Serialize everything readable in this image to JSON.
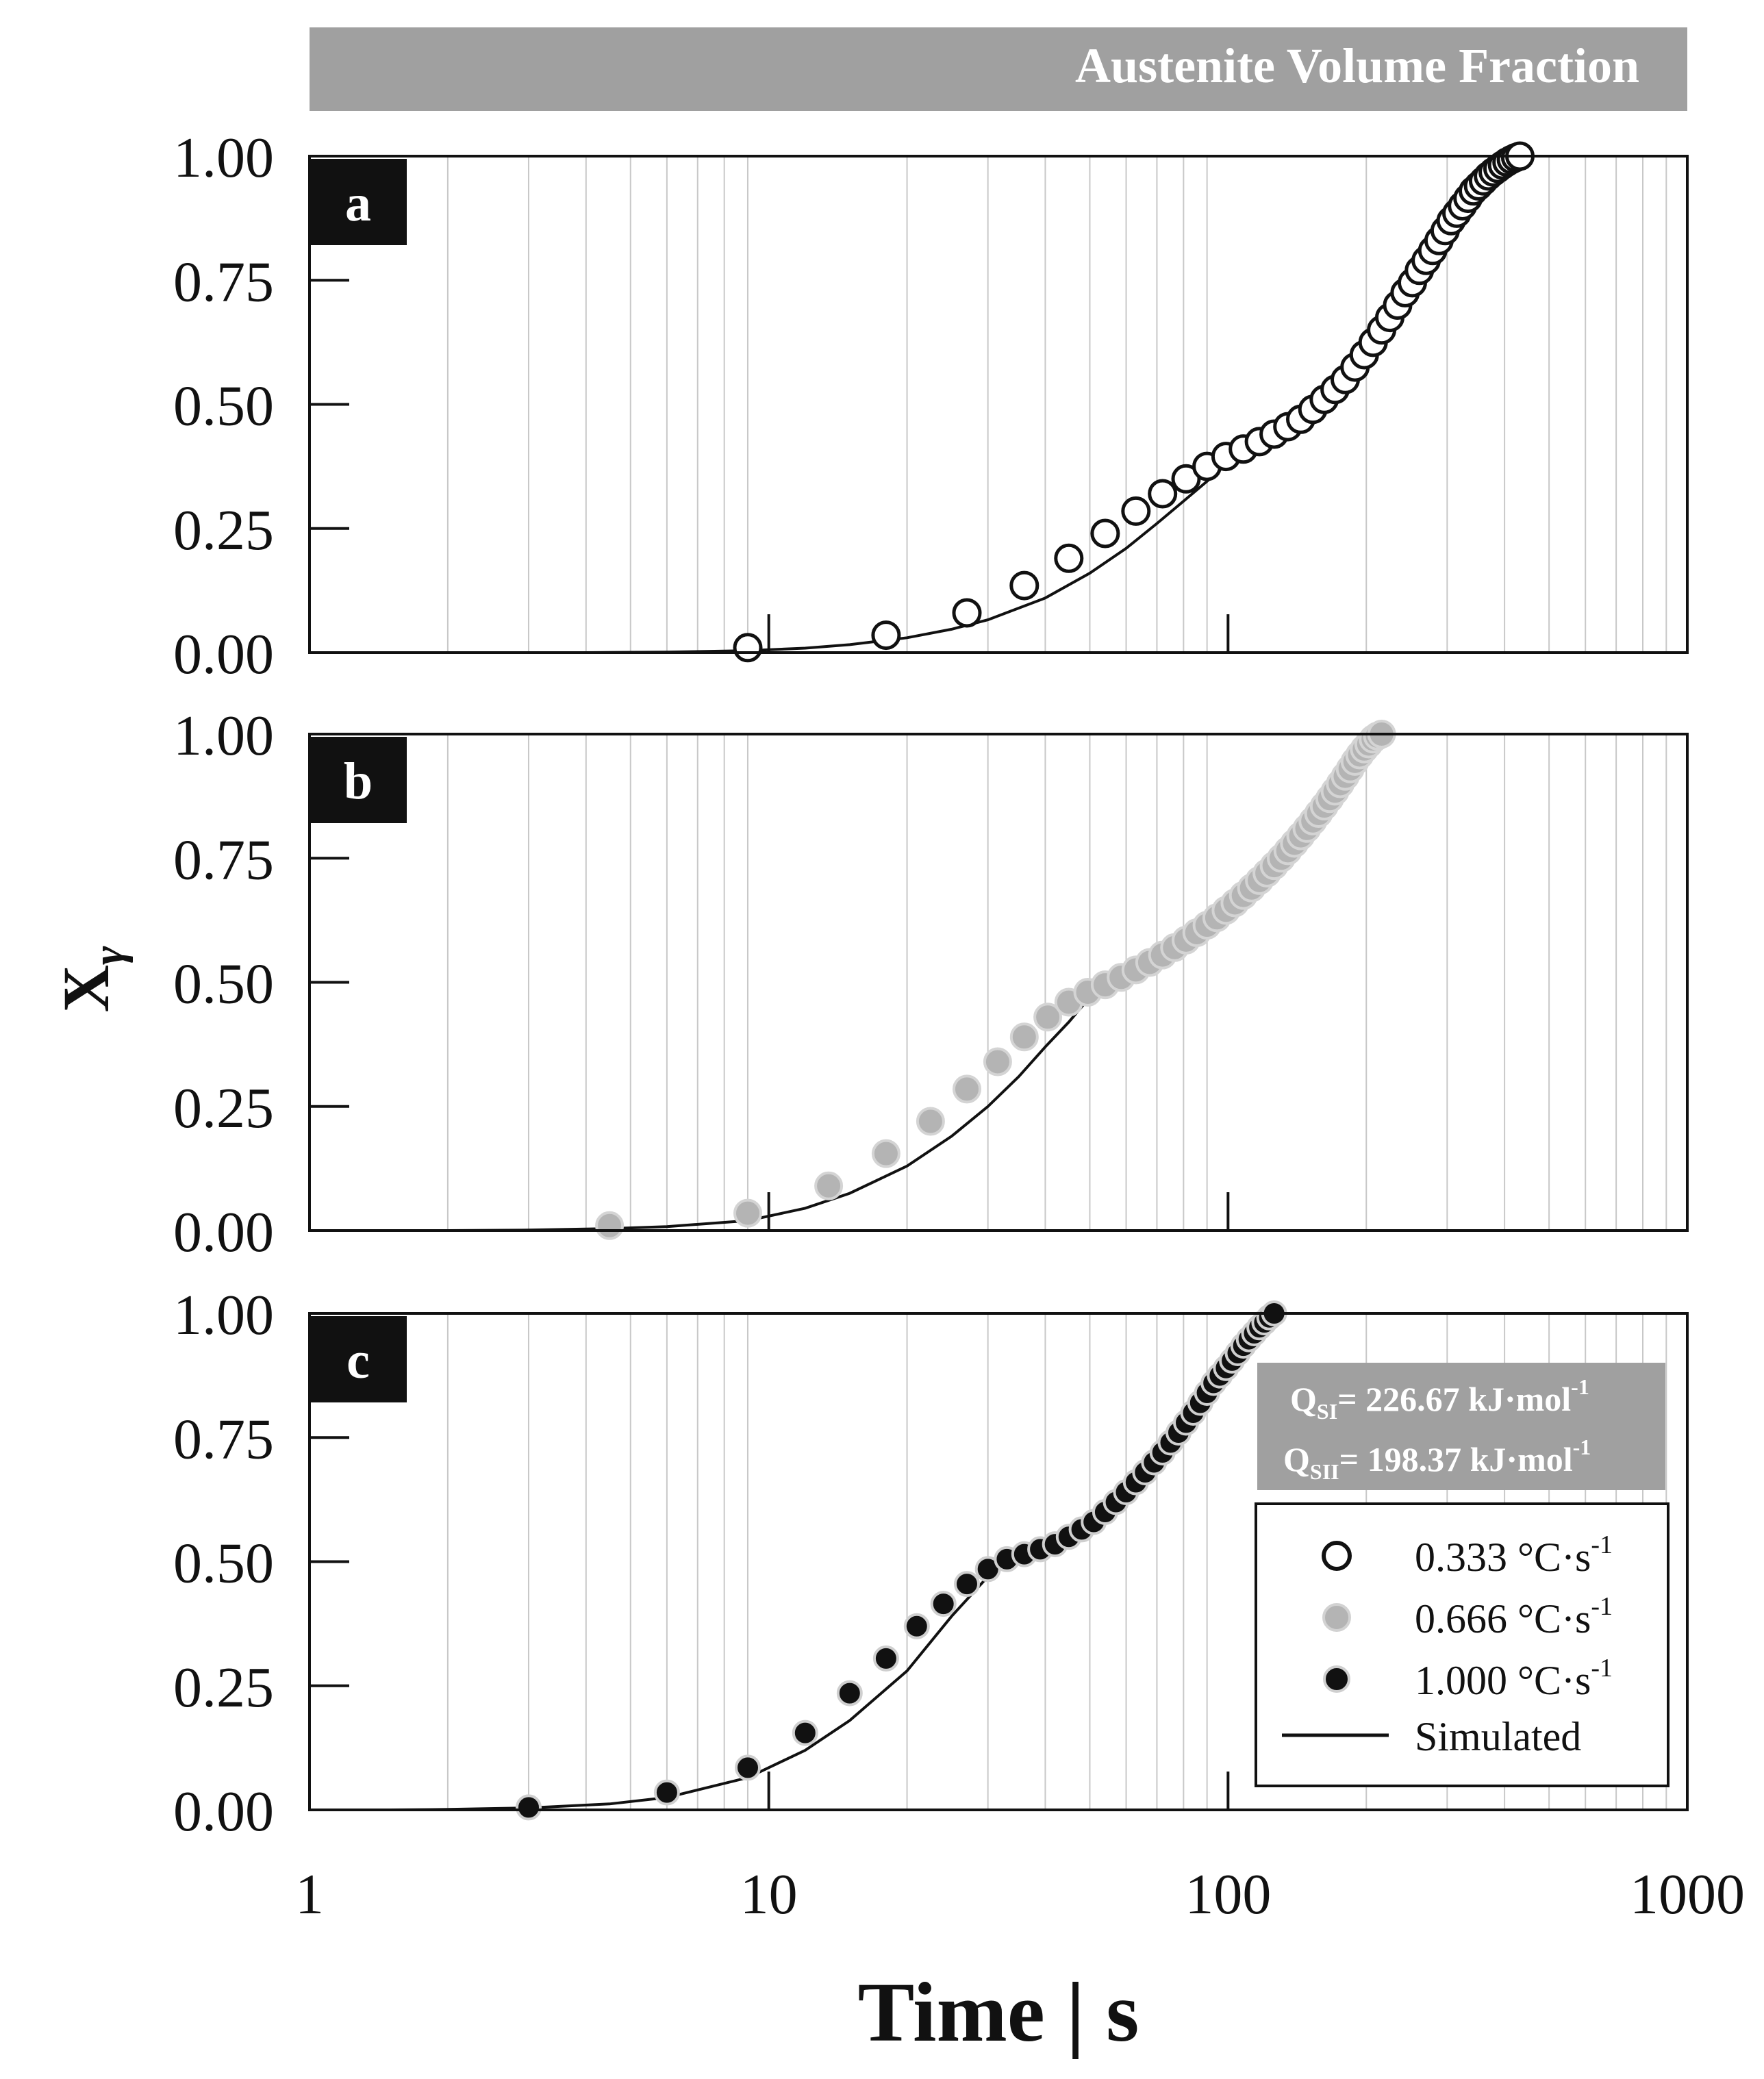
{
  "figure": {
    "banner": "Austenite Volume Fraction",
    "ylabel_main": "X",
    "ylabel_sub": "γ",
    "xlabel": "Time | s",
    "y_ticks": [
      "0.00",
      "0.25",
      "0.50",
      "0.75",
      "1.00"
    ],
    "x_ticks": [
      "1",
      "10",
      "100",
      "1000"
    ]
  },
  "info_box": {
    "line1_main": "Q",
    "line1_sub": "SI",
    "line1_rest": "= 226.67 kJ·mol",
    "line1_sup": "-1",
    "line2_main": "Q",
    "line2_sub": "SII",
    "line2_rest": "= 198.37 kJ·mol",
    "line2_sup": "-1"
  },
  "legend": {
    "items": [
      {
        "label": "0.333 °C·s",
        "sup": "-1",
        "marker": "open-circle"
      },
      {
        "label": "0.666 °C·s",
        "sup": "-1",
        "marker": "gray-circle"
      },
      {
        "label": "1.000 °C·s",
        "sup": "-1",
        "marker": "black-circle"
      },
      {
        "label": "Simulated",
        "sup": "",
        "marker": "line"
      }
    ]
  },
  "colors": {
    "banner_bg": "#a0a0a0",
    "label_bg": "#111111",
    "gray_marker": "#b4b4b4",
    "grid": "#c8c8c8"
  },
  "chart_data": [
    {
      "type": "scatter",
      "panel": "a",
      "title": "Austenite Volume Fraction",
      "xlabel": "Time | s",
      "ylabel": "Xγ",
      "xscale": "log",
      "xlim": [
        1,
        1000
      ],
      "ylim": [
        0,
        1
      ],
      "series": [
        {
          "name": "0.333 °C·s-1",
          "marker": "open-circle",
          "x": [
            9,
            18,
            27,
            36,
            45,
            54,
            63,
            72,
            81,
            90,
            99,
            108,
            117,
            126,
            135,
            144,
            153,
            162,
            171,
            180,
            189,
            198,
            207,
            216,
            225,
            234,
            243,
            252,
            261,
            270,
            279,
            288,
            297,
            306,
            315,
            324,
            333,
            342,
            351,
            360,
            369,
            378,
            387,
            396,
            405,
            414,
            423,
            432
          ],
          "y": [
            0.01,
            0.035,
            0.08,
            0.135,
            0.19,
            0.24,
            0.285,
            0.32,
            0.35,
            0.375,
            0.395,
            0.41,
            0.425,
            0.44,
            0.455,
            0.47,
            0.49,
            0.51,
            0.53,
            0.55,
            0.575,
            0.6,
            0.625,
            0.65,
            0.675,
            0.7,
            0.725,
            0.745,
            0.77,
            0.79,
            0.81,
            0.83,
            0.85,
            0.87,
            0.885,
            0.9,
            0.915,
            0.93,
            0.94,
            0.95,
            0.96,
            0.968,
            0.975,
            0.982,
            0.988,
            0.993,
            0.997,
            1.0
          ]
        },
        {
          "name": "Simulated",
          "marker": "line",
          "x": [
            4,
            6,
            9,
            12,
            15,
            20,
            25,
            30,
            40,
            50,
            60,
            70,
            80,
            90,
            98,
            110,
            130,
            150,
            170,
            200,
            230,
            260,
            290,
            320,
            350,
            380,
            410,
            432
          ],
          "y": [
            0.0,
            0.001,
            0.004,
            0.009,
            0.016,
            0.03,
            0.047,
            0.066,
            0.11,
            0.16,
            0.21,
            0.26,
            0.305,
            0.345,
            0.375,
            0.395,
            0.43,
            0.475,
            0.53,
            0.6,
            0.68,
            0.755,
            0.82,
            0.875,
            0.92,
            0.958,
            0.985,
            1.0
          ]
        }
      ]
    },
    {
      "type": "scatter",
      "panel": "b",
      "xlabel": "Time | s",
      "ylabel": "Xγ",
      "xscale": "log",
      "xlim": [
        1,
        1000
      ],
      "ylim": [
        0,
        1
      ],
      "series": [
        {
          "name": "0.666 °C·s-1",
          "marker": "gray-circle",
          "x": [
            4.5,
            9,
            13.5,
            18,
            22.5,
            27,
            31.5,
            36,
            40.5,
            45,
            49.5,
            54,
            58.5,
            63,
            67.5,
            72,
            76.5,
            81,
            85.5,
            90,
            94.5,
            99,
            103.5,
            108,
            112.5,
            117,
            121.5,
            126,
            130.5,
            135,
            139.5,
            144,
            148.5,
            153,
            157.5,
            162,
            166.5,
            171,
            175.5,
            180,
            184.5,
            189,
            193.5,
            198,
            202.5,
            207,
            211.5,
            216
          ],
          "y": [
            0.01,
            0.035,
            0.09,
            0.155,
            0.22,
            0.285,
            0.34,
            0.39,
            0.43,
            0.46,
            0.48,
            0.495,
            0.51,
            0.525,
            0.54,
            0.555,
            0.57,
            0.585,
            0.6,
            0.615,
            0.63,
            0.645,
            0.66,
            0.675,
            0.69,
            0.705,
            0.72,
            0.735,
            0.75,
            0.765,
            0.78,
            0.795,
            0.81,
            0.825,
            0.84,
            0.855,
            0.87,
            0.885,
            0.9,
            0.915,
            0.93,
            0.945,
            0.958,
            0.97,
            0.98,
            0.99,
            0.996,
            1.0
          ]
        },
        {
          "name": "Simulated",
          "marker": "line",
          "x": [
            2,
            3,
            4.5,
            6,
            9,
            12,
            15,
            20,
            25,
            30,
            35,
            40,
            45,
            50,
            51,
            60,
            70,
            80,
            90,
            100,
            110,
            120,
            140,
            160,
            180,
            200,
            216
          ],
          "y": [
            0.0,
            0.001,
            0.004,
            0.008,
            0.02,
            0.045,
            0.075,
            0.13,
            0.19,
            0.25,
            0.31,
            0.37,
            0.42,
            0.47,
            0.48,
            0.5,
            0.53,
            0.565,
            0.6,
            0.64,
            0.68,
            0.72,
            0.8,
            0.87,
            0.93,
            0.98,
            1.0
          ]
        }
      ]
    },
    {
      "type": "scatter",
      "panel": "c",
      "xlabel": "Time | s",
      "ylabel": "Xγ",
      "xscale": "log",
      "xlim": [
        1,
        1000
      ],
      "ylim": [
        0,
        1
      ],
      "series": [
        {
          "name": "1.000 °C·s-1",
          "marker": "black-circle",
          "x": [
            3,
            6,
            9,
            12,
            15,
            18,
            21,
            24,
            27,
            30,
            33,
            36,
            39,
            42,
            45,
            48,
            51,
            54,
            57,
            60,
            63,
            66,
            69,
            72,
            75,
            78,
            81,
            84,
            87,
            90,
            93,
            96,
            99,
            102,
            105,
            108,
            111,
            114,
            117,
            120,
            123,
            126
          ],
          "y": [
            0.005,
            0.035,
            0.085,
            0.155,
            0.235,
            0.305,
            0.37,
            0.415,
            0.455,
            0.485,
            0.505,
            0.515,
            0.525,
            0.535,
            0.55,
            0.565,
            0.58,
            0.6,
            0.62,
            0.64,
            0.66,
            0.68,
            0.7,
            0.72,
            0.74,
            0.76,
            0.78,
            0.8,
            0.82,
            0.84,
            0.86,
            0.875,
            0.89,
            0.905,
            0.92,
            0.935,
            0.948,
            0.96,
            0.972,
            0.982,
            0.992,
            1.0
          ]
        },
        {
          "name": "Simulated",
          "marker": "line",
          "x": [
            1.5,
            2,
            3,
            4.5,
            6,
            9,
            12,
            15,
            20,
            25,
            30,
            31,
            35,
            40,
            45,
            50,
            60,
            70,
            80,
            90,
            100,
            110,
            120,
            126
          ],
          "y": [
            0.0,
            0.001,
            0.004,
            0.012,
            0.025,
            0.065,
            0.12,
            0.18,
            0.28,
            0.39,
            0.47,
            0.48,
            0.5,
            0.52,
            0.545,
            0.575,
            0.64,
            0.71,
            0.78,
            0.84,
            0.9,
            0.95,
            0.985,
            1.0
          ]
        }
      ]
    }
  ]
}
